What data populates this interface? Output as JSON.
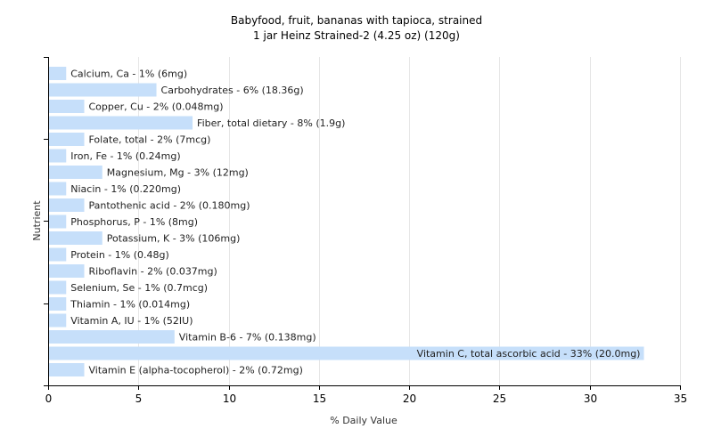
{
  "chart_data": {
    "type": "bar",
    "orientation": "horizontal",
    "title": "Babyfood, fruit, bananas with tapioca, strained",
    "subtitle": "1 jar Heinz Strained-2 (4.25 oz) (120g)",
    "xlabel": "% Daily Value",
    "ylabel": "Nutrient",
    "xlim": [
      0,
      35
    ],
    "xticks": [
      0,
      5,
      10,
      15,
      20,
      25,
      30,
      35
    ],
    "grid": true,
    "bar_color": "#c6dffa",
    "categories": [
      "Calcium, Ca",
      "Carbohydrates",
      "Copper, Cu",
      "Fiber, total dietary",
      "Folate, total",
      "Iron, Fe",
      "Magnesium, Mg",
      "Niacin",
      "Pantothenic acid",
      "Phosphorus, P",
      "Potassium, K",
      "Protein",
      "Riboflavin",
      "Selenium, Se",
      "Thiamin",
      "Vitamin A, IU",
      "Vitamin B-6",
      "Vitamin C, total ascorbic acid",
      "Vitamin E (alpha-tocopherol)"
    ],
    "values": [
      1,
      6,
      2,
      8,
      2,
      1,
      3,
      1,
      2,
      1,
      3,
      1,
      2,
      1,
      1,
      1,
      7,
      33,
      2
    ],
    "labels": [
      "Calcium, Ca - 1% (6mg)",
      "Carbohydrates - 6% (18.36g)",
      "Copper, Cu - 2% (0.048mg)",
      "Fiber, total dietary - 8% (1.9g)",
      "Folate, total - 2% (7mcg)",
      "Iron, Fe - 1% (0.24mg)",
      "Magnesium, Mg - 3% (12mg)",
      "Niacin - 1% (0.220mg)",
      "Pantothenic acid - 2% (0.180mg)",
      "Phosphorus, P - 1% (8mg)",
      "Potassium, K - 3% (106mg)",
      "Protein - 1% (0.48g)",
      "Riboflavin - 2% (0.037mg)",
      "Selenium, Se - 1% (0.7mcg)",
      "Thiamin - 1% (0.014mg)",
      "Vitamin A, IU - 1% (52IU)",
      "Vitamin B-6 - 7% (0.138mg)",
      "Vitamin C, total ascorbic acid - 33% (20.0mg)",
      "Vitamin E (alpha-tocopherol) - 2% (0.72mg)"
    ]
  }
}
